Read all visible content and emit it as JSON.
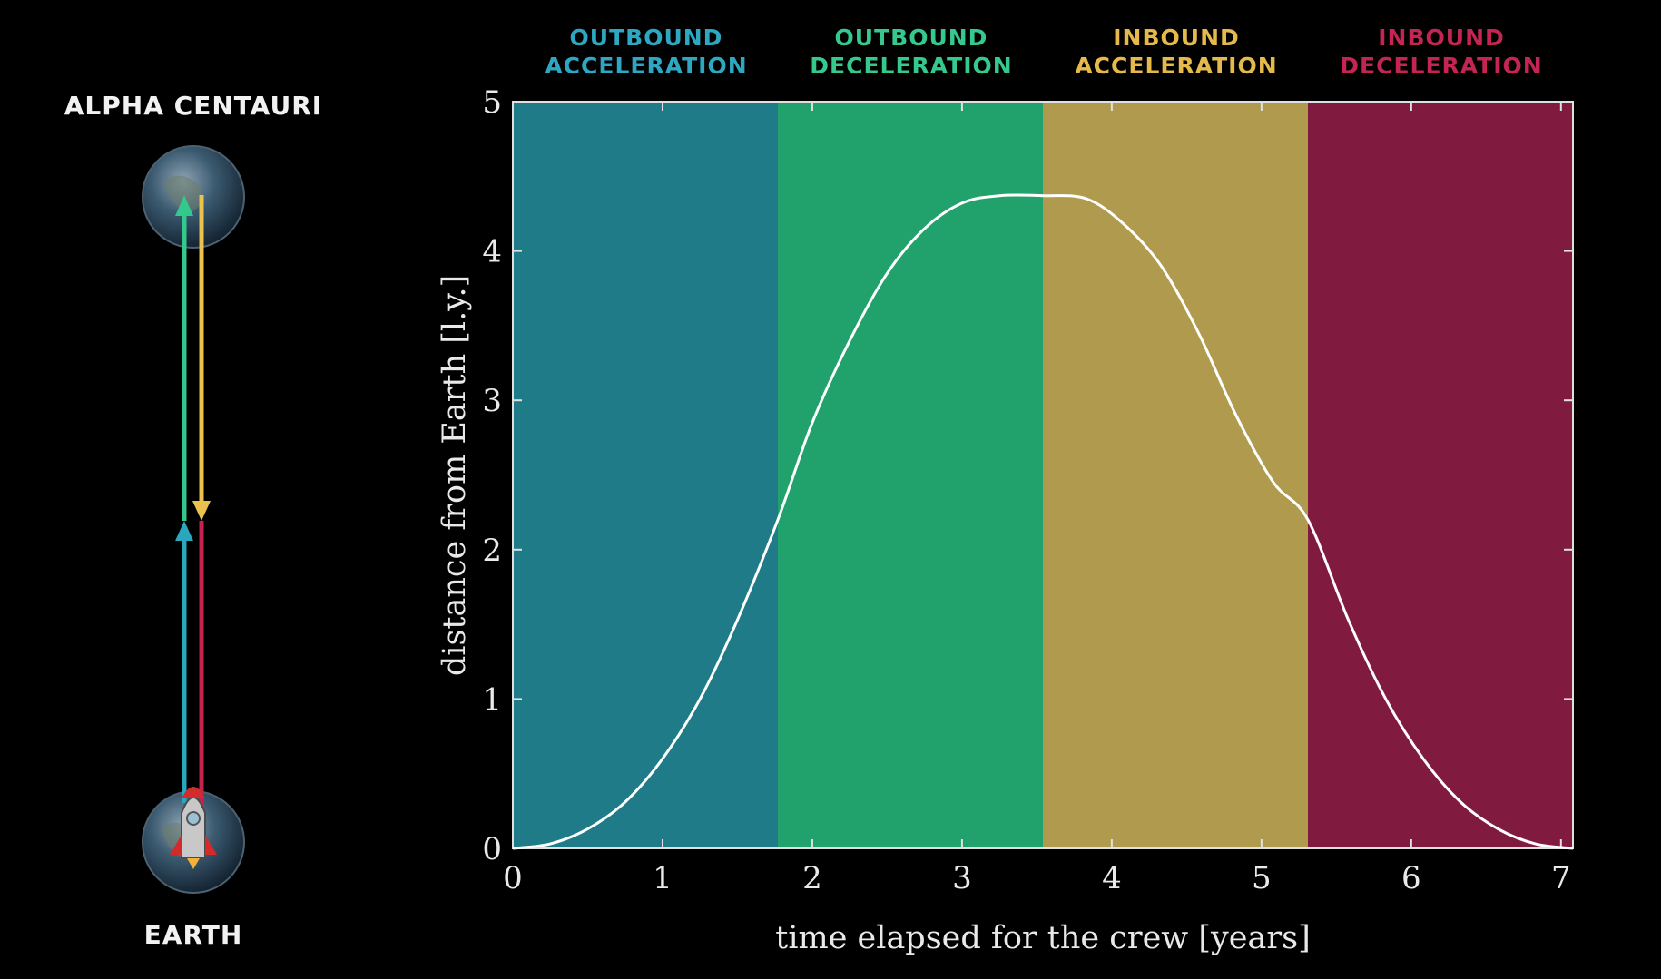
{
  "diagram": {
    "destination_label": "ALPHA CENTAURI",
    "origin_label": "EARTH",
    "arrow_colors": {
      "outbound_acceleration": "#2aa6bd",
      "outbound_deceleration": "#34c98c",
      "inbound_acceleration": "#ebc24e",
      "inbound_deceleration": "#c3234d"
    },
    "icons": [
      "planet-icon",
      "rocket-icon"
    ]
  },
  "phases": [
    {
      "line1": "OUTBOUND",
      "line2": "ACCELERATION",
      "text_color": "#2ea7c2",
      "band_color": "#1e7b87",
      "x_start": 0,
      "x_end": 1.77
    },
    {
      "line1": "OUTBOUND",
      "line2": "DECELERATION",
      "text_color": "#35c98e",
      "band_color": "#21a16c",
      "x_start": 1.77,
      "x_end": 3.54
    },
    {
      "line1": "INBOUND",
      "line2": "ACCELERATION",
      "text_color": "#e5b94c",
      "band_color": "#af9a4d",
      "x_start": 3.54,
      "x_end": 5.31
    },
    {
      "line1": "INBOUND",
      "line2": "DECELERATION",
      "text_color": "#c42552",
      "band_color": "#811a3f",
      "x_start": 5.31,
      "x_end": 7.08
    }
  ],
  "chart_data": {
    "type": "line",
    "xlabel": "time elapsed for the crew [years]",
    "ylabel": "distance from Earth [l.y.]",
    "xlim": [
      0,
      7.08
    ],
    "ylim": [
      0,
      5
    ],
    "xticks": [
      "0",
      "1",
      "2",
      "3",
      "4",
      "5",
      "6",
      "7"
    ],
    "yticks": [
      "0",
      "1",
      "2",
      "3",
      "4",
      "5"
    ],
    "grid": false,
    "line_color": "#ffffff",
    "series": [
      {
        "x": [
          0,
          0.25,
          0.5,
          0.75,
          1.0,
          1.25,
          1.5,
          1.77,
          2.0,
          2.25,
          2.5,
          2.75,
          3.0,
          3.25,
          3.54,
          3.83,
          4.08,
          4.33,
          4.58,
          4.83,
          5.08,
          5.31,
          5.58,
          5.83,
          6.08,
          6.33,
          6.58,
          6.83,
          7.08
        ],
        "y": [
          0,
          0.03,
          0.13,
          0.31,
          0.6,
          1.0,
          1.53,
          2.2,
          2.85,
          3.4,
          3.85,
          4.15,
          4.32,
          4.37,
          4.37,
          4.35,
          4.18,
          3.9,
          3.45,
          2.9,
          2.45,
          2.2,
          1.53,
          1.0,
          0.6,
          0.31,
          0.13,
          0.03,
          0
        ]
      }
    ]
  }
}
